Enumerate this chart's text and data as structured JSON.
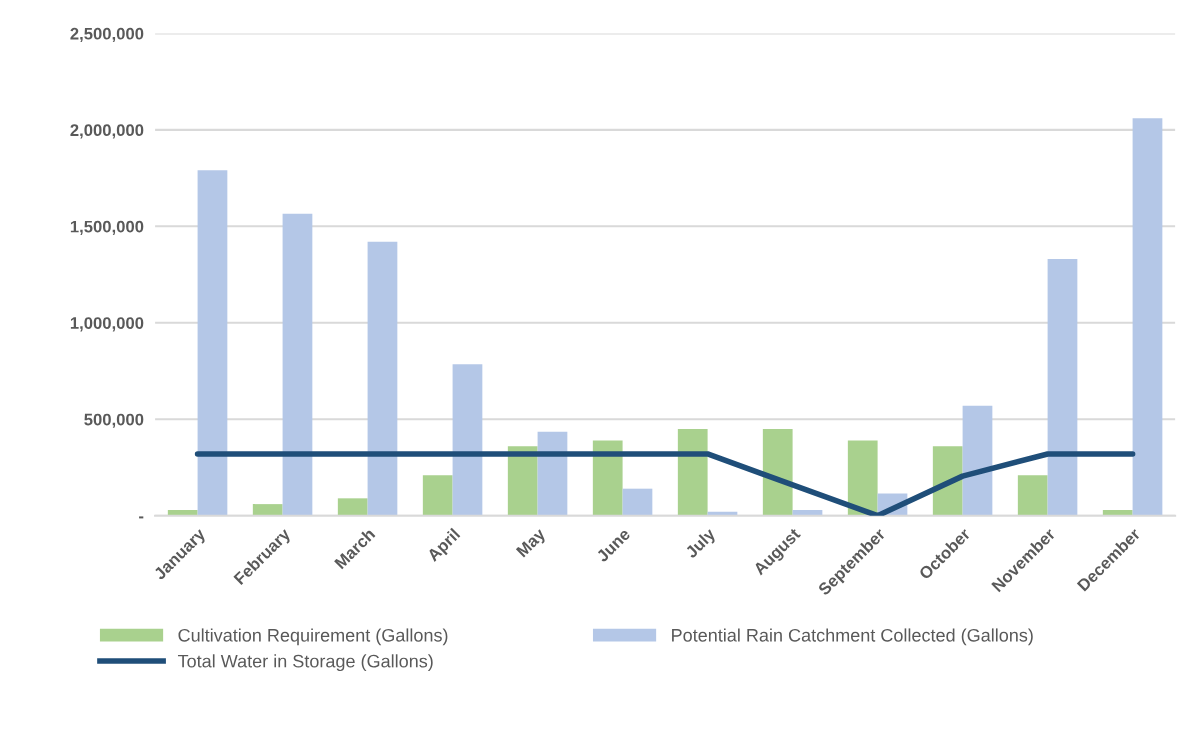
{
  "chart_data": {
    "type": "bar",
    "categories": [
      "January",
      "February",
      "March",
      "April",
      "May",
      "June",
      "July",
      "August",
      "September",
      "October",
      "November",
      "December"
    ],
    "series": [
      {
        "name": "Cultivation Requirement (Gallons)",
        "color": "#a9d18e",
        "values": [
          30000,
          60000,
          90000,
          210000,
          360000,
          390000,
          450000,
          450000,
          390000,
          360000,
          210000,
          30000
        ]
      },
      {
        "name": "Potential Rain Catchment Collected (Gallons)",
        "color": "#b4c7e7",
        "values": [
          1790000,
          1565000,
          1420000,
          785000,
          435000,
          140000,
          20000,
          30000,
          115000,
          570000,
          1330000,
          2060000
        ]
      },
      {
        "name": "Total Water in Storage (Gallons)",
        "type": "line",
        "color": "#1f4e79",
        "values": [
          320000,
          320000,
          320000,
          320000,
          320000,
          320000,
          320000,
          160000,
          0,
          205000,
          320000,
          320000
        ]
      }
    ],
    "ylim": [
      0,
      2500000
    ],
    "yticks": [
      {
        "value": 0,
        "label": "-"
      },
      {
        "value": 500000,
        "label": "500,000"
      },
      {
        "value": 1000000,
        "label": "1,000,000"
      },
      {
        "value": 1500000,
        "label": "1,500,000"
      },
      {
        "value": 2000000,
        "label": "2,000,000"
      },
      {
        "value": 2500000,
        "label": "2,500,000"
      }
    ],
    "grid": "y",
    "legend": "bottom",
    "marker": "none",
    "line_style": "solid"
  }
}
